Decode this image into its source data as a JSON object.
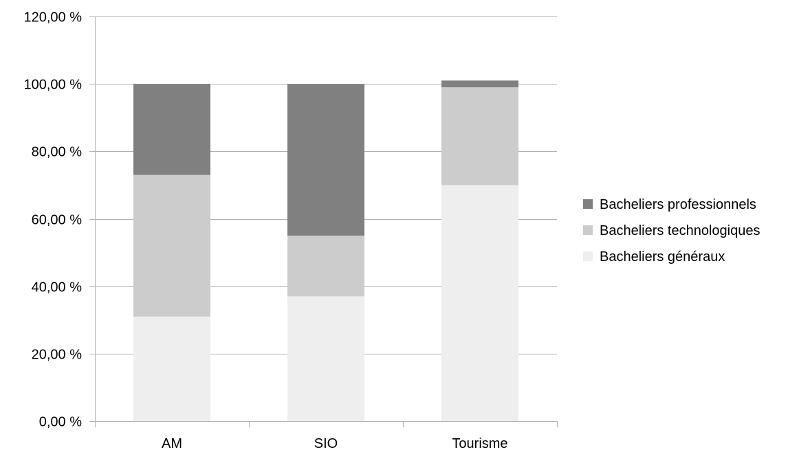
{
  "chart_data": {
    "type": "bar",
    "stacked": true,
    "categories": [
      "AM",
      "SIO",
      "Tourisme"
    ],
    "series": [
      {
        "name": "Bacheliers généraux",
        "values": [
          31,
          37,
          70
        ],
        "color": "#eeeeee"
      },
      {
        "name": "Bacheliers technologiques",
        "values": [
          42,
          18,
          29
        ],
        "color": "#cccccc"
      },
      {
        "name": "Bacheliers professionnels",
        "values": [
          27,
          45,
          2
        ],
        "color": "#808080"
      }
    ],
    "yticks": [
      "0,00 %",
      "20,00 %",
      "40,00 %",
      "60,00 %",
      "80,00 %",
      "100,00 %",
      "120,00 %"
    ],
    "ylim": [
      0,
      120
    ],
    "title": "",
    "xlabel": "",
    "ylabel": "",
    "grid": true,
    "legend": {
      "position": "right",
      "order": [
        "Bacheliers professionnels",
        "Bacheliers technologiques",
        "Bacheliers généraux"
      ]
    },
    "colors": {
      "gridline": "#b3b3b3",
      "axis": "#b3b3b3"
    }
  }
}
